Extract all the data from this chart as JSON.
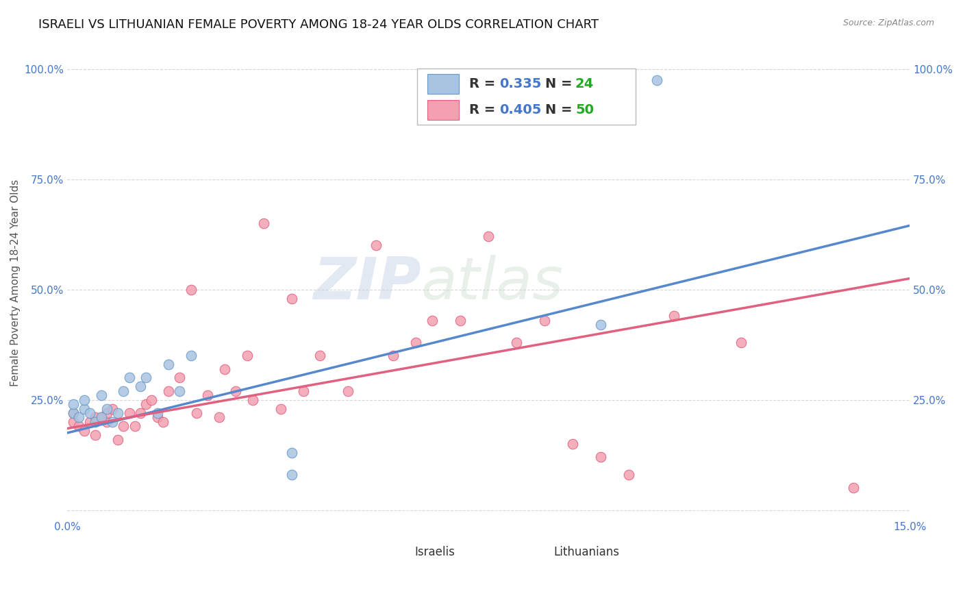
{
  "title": "ISRAELI VS LITHUANIAN FEMALE POVERTY AMONG 18-24 YEAR OLDS CORRELATION CHART",
  "source": "Source: ZipAtlas.com",
  "ylabel": "Female Poverty Among 18-24 Year Olds",
  "xlim": [
    0.0,
    0.15
  ],
  "ylim": [
    -0.02,
    1.05
  ],
  "israeli_color": "#a8c4e0",
  "lithuanian_color": "#f4a0b0",
  "israeli_edge_color": "#6699cc",
  "lithuanian_edge_color": "#e06080",
  "israeli_R": 0.335,
  "israeli_N": 24,
  "lithuanian_R": 0.405,
  "lithuanian_N": 50,
  "legend_R_color": "#4477cc",
  "legend_N_color": "#22aa22",
  "watermark_zip": "ZIP",
  "watermark_atlas": "atlas",
  "israeli_line_color": "#5588cc",
  "lithuanian_line_color": "#e06080",
  "title_fontsize": 13,
  "tick_label_color": "#4477cc",
  "israeli_line_x0": 0.0,
  "israeli_line_y0": 0.175,
  "israeli_line_x1": 0.15,
  "israeli_line_y1": 0.645,
  "lithuanian_line_x0": 0.0,
  "lithuanian_line_y0": 0.185,
  "lithuanian_line_x1": 0.15,
  "lithuanian_line_y1": 0.525,
  "israeli_x": [
    0.001,
    0.001,
    0.002,
    0.003,
    0.003,
    0.004,
    0.005,
    0.006,
    0.006,
    0.007,
    0.008,
    0.009,
    0.01,
    0.011,
    0.013,
    0.014,
    0.016,
    0.018,
    0.02,
    0.022,
    0.04,
    0.04,
    0.095,
    0.105
  ],
  "israeli_y": [
    0.22,
    0.24,
    0.21,
    0.23,
    0.25,
    0.22,
    0.2,
    0.21,
    0.26,
    0.23,
    0.2,
    0.22,
    0.27,
    0.3,
    0.28,
    0.3,
    0.22,
    0.33,
    0.27,
    0.35,
    0.13,
    0.08,
    0.42,
    0.975
  ],
  "lithuanian_x": [
    0.001,
    0.001,
    0.002,
    0.003,
    0.004,
    0.005,
    0.005,
    0.006,
    0.007,
    0.007,
    0.008,
    0.009,
    0.01,
    0.011,
    0.012,
    0.013,
    0.014,
    0.015,
    0.016,
    0.017,
    0.018,
    0.02,
    0.022,
    0.023,
    0.025,
    0.027,
    0.028,
    0.03,
    0.032,
    0.033,
    0.035,
    0.038,
    0.04,
    0.042,
    0.045,
    0.05,
    0.055,
    0.058,
    0.062,
    0.065,
    0.07,
    0.075,
    0.08,
    0.085,
    0.09,
    0.095,
    0.1,
    0.108,
    0.12,
    0.14
  ],
  "lithuanian_y": [
    0.2,
    0.22,
    0.19,
    0.18,
    0.2,
    0.17,
    0.21,
    0.21,
    0.2,
    0.22,
    0.23,
    0.16,
    0.19,
    0.22,
    0.19,
    0.22,
    0.24,
    0.25,
    0.21,
    0.2,
    0.27,
    0.3,
    0.5,
    0.22,
    0.26,
    0.21,
    0.32,
    0.27,
    0.35,
    0.25,
    0.65,
    0.23,
    0.48,
    0.27,
    0.35,
    0.27,
    0.6,
    0.35,
    0.38,
    0.43,
    0.43,
    0.62,
    0.38,
    0.43,
    0.15,
    0.12,
    0.08,
    0.44,
    0.38,
    0.05
  ],
  "marker_size": 110,
  "line_width": 2.5
}
